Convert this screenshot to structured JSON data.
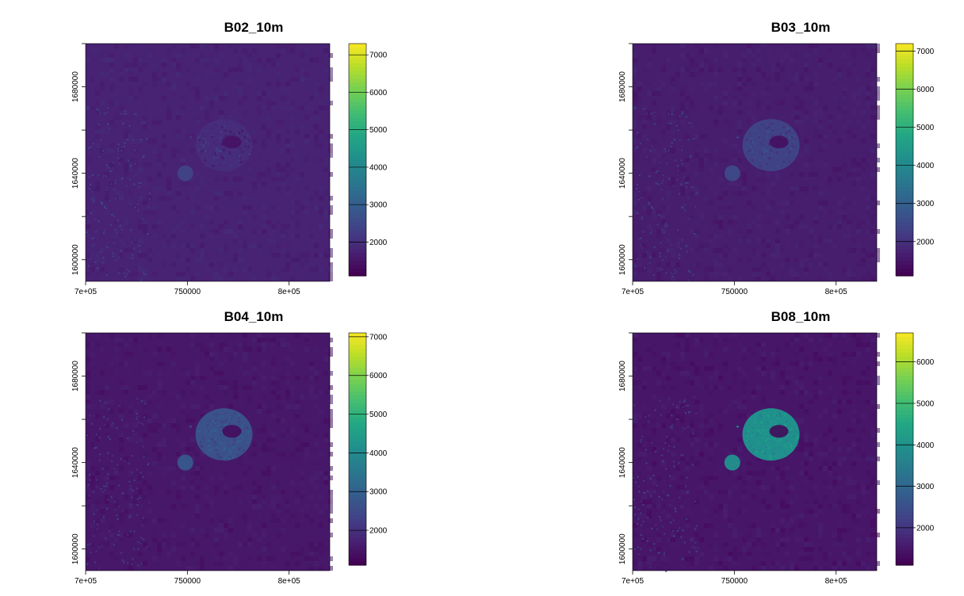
{
  "chart_data": [
    {
      "type": "heatmap",
      "title": "B02_10m",
      "x_ticks": [
        "7e+05",
        "750000",
        "8e+05"
      ],
      "x_tick_values": [
        700000,
        750000,
        800000
      ],
      "y_ticks": [
        "1600000",
        "1640000",
        "1680000"
      ],
      "y_tick_values": [
        1600000,
        1640000,
        1680000
      ],
      "xlim": [
        700000,
        820000
      ],
      "ylim": [
        1590000,
        1700000
      ],
      "colorbar_ticks": [
        "2000",
        "3000",
        "4000",
        "5000",
        "6000",
        "7000"
      ],
      "colorbar_tick_values": [
        2000,
        3000,
        4000,
        5000,
        6000,
        7000
      ],
      "colorbar_range": [
        1100,
        7300
      ],
      "colormap": "viridis",
      "features": {
        "big_island_value": 1900,
        "small_island_value": 2300,
        "background_value": 1700
      }
    },
    {
      "type": "heatmap",
      "title": "B03_10m",
      "x_ticks": [
        "7e+05",
        "750000",
        "8e+05"
      ],
      "x_tick_values": [
        700000,
        750000,
        800000
      ],
      "y_ticks": [
        "1600000",
        "1640000",
        "1680000"
      ],
      "y_tick_values": [
        1600000,
        1640000,
        1680000
      ],
      "xlim": [
        700000,
        820000
      ],
      "ylim": [
        1590000,
        1700000
      ],
      "colorbar_ticks": [
        "2000",
        "3000",
        "4000",
        "5000",
        "6000",
        "7000"
      ],
      "colorbar_tick_values": [
        2000,
        3000,
        4000,
        5000,
        6000,
        7000
      ],
      "colorbar_range": [
        1100,
        7200
      ],
      "colormap": "viridis",
      "features": {
        "big_island_value": 2300,
        "small_island_value": 2400,
        "background_value": 1600
      }
    },
    {
      "type": "heatmap",
      "title": "B04_10m",
      "x_ticks": [
        "7e+05",
        "750000",
        "8e+05"
      ],
      "x_tick_values": [
        700000,
        750000,
        800000
      ],
      "y_ticks": [
        "1600000",
        "1640000",
        "1680000"
      ],
      "y_tick_values": [
        1600000,
        1640000,
        1680000
      ],
      "xlim": [
        700000,
        820000
      ],
      "ylim": [
        1590000,
        1700000
      ],
      "colorbar_ticks": [
        "2000",
        "3000",
        "4000",
        "5000",
        "6000",
        "7000"
      ],
      "colorbar_tick_values": [
        2000,
        3000,
        4000,
        5000,
        6000,
        7000
      ],
      "colorbar_range": [
        1100,
        7100
      ],
      "colormap": "viridis",
      "features": {
        "big_island_value": 2600,
        "small_island_value": 2700,
        "background_value": 1500
      }
    },
    {
      "type": "heatmap",
      "title": "B08_10m",
      "x_ticks": [
        "7e+05",
        "750000",
        "8e+05"
      ],
      "x_tick_values": [
        700000,
        750000,
        800000
      ],
      "y_ticks": [
        "1600000",
        "1640000",
        "1680000"
      ],
      "y_tick_values": [
        1600000,
        1640000,
        1680000
      ],
      "xlim": [
        700000,
        820000
      ],
      "ylim": [
        1590000,
        1700000
      ],
      "colorbar_ticks": [
        "2000",
        "3000",
        "4000",
        "5000",
        "6000"
      ],
      "colorbar_tick_values": [
        2000,
        3000,
        4000,
        5000,
        6000
      ],
      "colorbar_range": [
        1100,
        6700
      ],
      "colormap": "viridis",
      "features": {
        "big_island_value": 3900,
        "small_island_value": 3800,
        "background_value": 1450
      }
    }
  ]
}
